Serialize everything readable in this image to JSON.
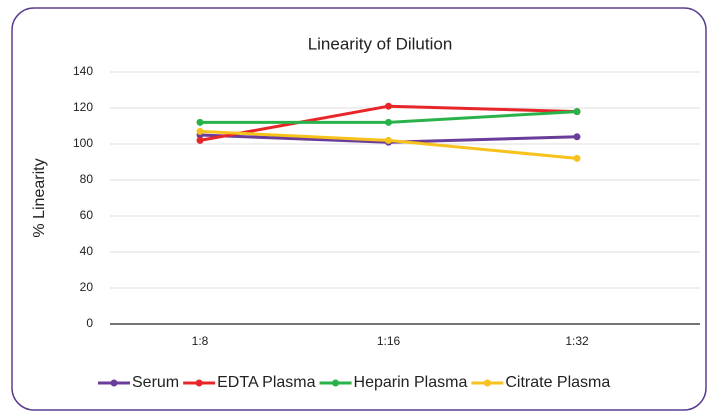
{
  "chart_data": {
    "type": "line",
    "title": "Linearity of Dilution",
    "y_label": "% Linearity",
    "categories": [
      "1:8",
      "1:16",
      "1:32"
    ],
    "series": [
      {
        "name": "Serum",
        "color": "#6a3d9a",
        "values": [
          105,
          101,
          104
        ]
      },
      {
        "name": "EDTA Plasma",
        "color": "#e8262a",
        "values": [
          102,
          121,
          118
        ]
      },
      {
        "name": "Heparin Plasma",
        "color": "#2ab24a",
        "values": [
          112,
          112,
          118
        ]
      },
      {
        "name": "Citrate Plasma",
        "color": "#f7c21b",
        "values": [
          107,
          102,
          92
        ]
      }
    ],
    "ylim": [
      0,
      140
    ],
    "yticks": [
      0,
      20,
      40,
      60,
      80,
      100,
      120,
      140
    ],
    "grid": true,
    "legend": "bottom"
  }
}
